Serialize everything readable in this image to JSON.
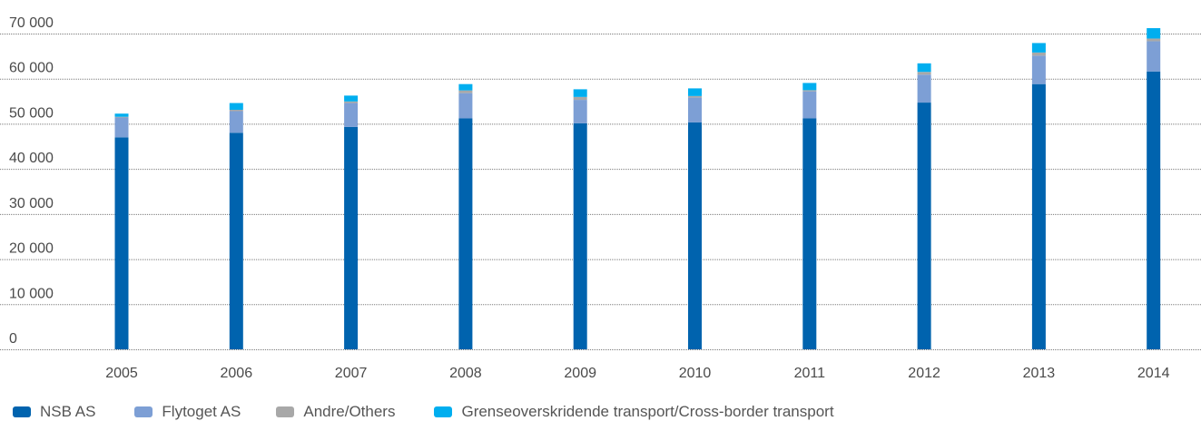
{
  "chart_data": {
    "type": "bar",
    "stacked": true,
    "categories": [
      "2005",
      "2006",
      "2007",
      "2008",
      "2009",
      "2010",
      "2011",
      "2012",
      "2013",
      "2014"
    ],
    "series": [
      {
        "name": "NSB AS",
        "color": "#0063ae",
        "values": [
          47000,
          48000,
          49300,
          51200,
          50100,
          50300,
          51200,
          54700,
          58800,
          61600
        ]
      },
      {
        "name": "Flytoget AS",
        "color": "#7d9fd5",
        "values": [
          4400,
          4800,
          5300,
          5600,
          5200,
          5500,
          6000,
          6200,
          6300,
          6700
        ]
      },
      {
        "name": "Andre/Others",
        "color": "#a8a8a8",
        "values": [
          150,
          300,
          350,
          600,
          650,
          350,
          250,
          600,
          700,
          600
        ]
      },
      {
        "name": "Grenseoverskridende transport/Cross-border transport",
        "color": "#00aeef",
        "values": [
          700,
          1500,
          1300,
          1400,
          1700,
          1700,
          1600,
          1900,
          2100,
          2300
        ]
      }
    ],
    "yticks": [
      "0",
      "10 000",
      "20 000",
      "30 000",
      "40 000",
      "50 000",
      "60 000",
      "70 000"
    ],
    "ylim": [
      0,
      70000
    ],
    "grid": true,
    "legend_position": "bottom-left"
  }
}
